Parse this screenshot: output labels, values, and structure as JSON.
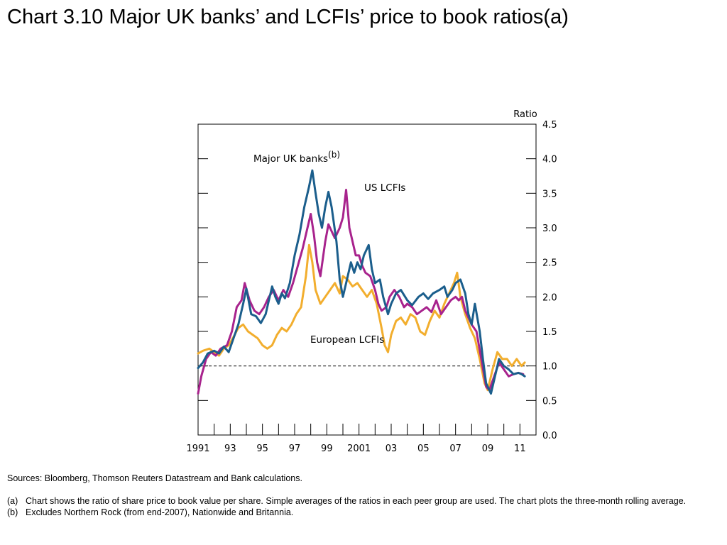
{
  "title": "Chart 3.10  Major UK banks’ and LCFIs’ price to book ratios(a)",
  "chart_data": {
    "type": "line",
    "ylabel": "Ratio",
    "ylim": [
      0,
      4.5
    ],
    "yticks": [
      "0.0",
      "0.5",
      "1.0",
      "1.5",
      "2.0",
      "2.5",
      "3.0",
      "3.5",
      "4.0",
      "4.5"
    ],
    "xlim": [
      1991,
      2012
    ],
    "xticks": [
      {
        "x": 1991,
        "label": "1991"
      },
      {
        "x": 1993,
        "label": "93"
      },
      {
        "x": 1995,
        "label": "95"
      },
      {
        "x": 1997,
        "label": "97"
      },
      {
        "x": 1999,
        "label": "99"
      },
      {
        "x": 2001,
        "label": "2001"
      },
      {
        "x": 2003,
        "label": "03"
      },
      {
        "x": 2005,
        "label": "05"
      },
      {
        "x": 2007,
        "label": "07"
      },
      {
        "x": 2009,
        "label": "09"
      },
      {
        "x": 2011,
        "label": "11"
      }
    ],
    "reference_line": {
      "y": 1.0,
      "style": "dashed"
    },
    "grid": false,
    "series": [
      {
        "name": "Major UK banks",
        "name_superscript": "(b)",
        "color": "#1b5e8c",
        "points": [
          [
            1991.0,
            0.97
          ],
          [
            1991.3,
            1.05
          ],
          [
            1991.6,
            1.18
          ],
          [
            1992.0,
            1.22
          ],
          [
            1992.3,
            1.18
          ],
          [
            1992.6,
            1.28
          ],
          [
            1992.9,
            1.2
          ],
          [
            1993.2,
            1.4
          ],
          [
            1993.5,
            1.6
          ],
          [
            1993.8,
            1.9
          ],
          [
            1994.0,
            2.12
          ],
          [
            1994.3,
            1.75
          ],
          [
            1994.6,
            1.72
          ],
          [
            1994.9,
            1.62
          ],
          [
            1995.2,
            1.75
          ],
          [
            1995.4,
            1.95
          ],
          [
            1995.6,
            2.15
          ],
          [
            1995.8,
            2.0
          ],
          [
            1996.0,
            1.9
          ],
          [
            1996.2,
            2.05
          ],
          [
            1996.4,
            1.98
          ],
          [
            1996.7,
            2.2
          ],
          [
            1997.0,
            2.6
          ],
          [
            1997.3,
            2.9
          ],
          [
            1997.6,
            3.3
          ],
          [
            1997.9,
            3.6
          ],
          [
            1998.1,
            3.83
          ],
          [
            1998.3,
            3.5
          ],
          [
            1998.5,
            3.2
          ],
          [
            1998.7,
            3.0
          ],
          [
            1998.9,
            3.3
          ],
          [
            1999.1,
            3.52
          ],
          [
            1999.3,
            3.3
          ],
          [
            1999.6,
            2.8
          ],
          [
            1999.8,
            2.25
          ],
          [
            2000.0,
            2.0
          ],
          [
            2000.3,
            2.3
          ],
          [
            2000.5,
            2.5
          ],
          [
            2000.7,
            2.35
          ],
          [
            2000.9,
            2.5
          ],
          [
            2001.1,
            2.4
          ],
          [
            2001.3,
            2.6
          ],
          [
            2001.6,
            2.75
          ],
          [
            2001.8,
            2.4
          ],
          [
            2002.0,
            2.2
          ],
          [
            2002.3,
            2.25
          ],
          [
            2002.5,
            2.0
          ],
          [
            2002.8,
            1.75
          ],
          [
            2003.0,
            1.9
          ],
          [
            2003.3,
            2.05
          ],
          [
            2003.6,
            2.1
          ],
          [
            2004.0,
            1.95
          ],
          [
            2004.3,
            1.88
          ],
          [
            2004.7,
            2.0
          ],
          [
            2005.0,
            2.05
          ],
          [
            2005.3,
            1.97
          ],
          [
            2005.6,
            2.05
          ],
          [
            2006.0,
            2.1
          ],
          [
            2006.3,
            2.15
          ],
          [
            2006.5,
            2.0
          ],
          [
            2006.8,
            2.1
          ],
          [
            2007.0,
            2.2
          ],
          [
            2007.3,
            2.25
          ],
          [
            2007.6,
            2.05
          ],
          [
            2007.8,
            1.75
          ],
          [
            2008.0,
            1.6
          ],
          [
            2008.2,
            1.9
          ],
          [
            2008.5,
            1.5
          ],
          [
            2008.7,
            1.1
          ],
          [
            2008.9,
            0.75
          ],
          [
            2009.2,
            0.6
          ],
          [
            2009.4,
            0.8
          ],
          [
            2009.7,
            1.1
          ],
          [
            2010.0,
            1.0
          ],
          [
            2010.3,
            0.95
          ],
          [
            2010.6,
            0.88
          ],
          [
            2010.9,
            0.9
          ],
          [
            2011.1,
            0.88
          ],
          [
            2011.3,
            0.85
          ]
        ]
      },
      {
        "name": "US LCFIs",
        "color": "#a8238d",
        "points": [
          [
            1991.0,
            0.6
          ],
          [
            1991.2,
            0.85
          ],
          [
            1991.5,
            1.1
          ],
          [
            1991.8,
            1.2
          ],
          [
            1992.1,
            1.15
          ],
          [
            1992.4,
            1.25
          ],
          [
            1992.8,
            1.3
          ],
          [
            1993.1,
            1.5
          ],
          [
            1993.4,
            1.85
          ],
          [
            1993.7,
            1.95
          ],
          [
            1993.9,
            2.2
          ],
          [
            1994.2,
            1.95
          ],
          [
            1994.5,
            1.8
          ],
          [
            1994.8,
            1.75
          ],
          [
            1995.1,
            1.85
          ],
          [
            1995.4,
            2.0
          ],
          [
            1995.7,
            2.1
          ],
          [
            1996.0,
            1.95
          ],
          [
            1996.3,
            2.1
          ],
          [
            1996.6,
            2.0
          ],
          [
            1996.9,
            2.2
          ],
          [
            1997.2,
            2.45
          ],
          [
            1997.5,
            2.7
          ],
          [
            1997.8,
            3.0
          ],
          [
            1998.0,
            3.2
          ],
          [
            1998.2,
            2.9
          ],
          [
            1998.4,
            2.5
          ],
          [
            1998.6,
            2.3
          ],
          [
            1998.9,
            2.8
          ],
          [
            1999.1,
            3.05
          ],
          [
            1999.3,
            2.95
          ],
          [
            1999.5,
            2.85
          ],
          [
            1999.8,
            3.0
          ],
          [
            2000.0,
            3.15
          ],
          [
            2000.2,
            3.55
          ],
          [
            2000.4,
            3.0
          ],
          [
            2000.6,
            2.8
          ],
          [
            2000.8,
            2.6
          ],
          [
            2001.0,
            2.6
          ],
          [
            2001.2,
            2.45
          ],
          [
            2001.4,
            2.35
          ],
          [
            2001.7,
            2.3
          ],
          [
            2002.0,
            2.1
          ],
          [
            2002.2,
            1.9
          ],
          [
            2002.4,
            1.8
          ],
          [
            2002.7,
            1.85
          ],
          [
            2002.9,
            2.0
          ],
          [
            2003.2,
            2.1
          ],
          [
            2003.5,
            2.0
          ],
          [
            2003.8,
            1.85
          ],
          [
            2004.0,
            1.9
          ],
          [
            2004.3,
            1.85
          ],
          [
            2004.6,
            1.75
          ],
          [
            2004.9,
            1.8
          ],
          [
            2005.2,
            1.85
          ],
          [
            2005.5,
            1.78
          ],
          [
            2005.8,
            1.95
          ],
          [
            2006.1,
            1.75
          ],
          [
            2006.4,
            1.85
          ],
          [
            2006.7,
            1.95
          ],
          [
            2007.0,
            2.0
          ],
          [
            2007.2,
            1.95
          ],
          [
            2007.4,
            2.0
          ],
          [
            2007.6,
            1.8
          ],
          [
            2007.8,
            1.7
          ],
          [
            2008.0,
            1.6
          ],
          [
            2008.3,
            1.5
          ],
          [
            2008.6,
            1.1
          ],
          [
            2008.9,
            0.7
          ],
          [
            2009.1,
            0.65
          ],
          [
            2009.4,
            0.85
          ],
          [
            2009.7,
            1.05
          ],
          [
            2010.0,
            0.95
          ],
          [
            2010.3,
            0.85
          ],
          [
            2010.6,
            0.88
          ],
          [
            2010.9,
            0.9
          ],
          [
            2011.2,
            0.88
          ]
        ]
      },
      {
        "name": "European LCFIs",
        "color": "#f2ae2e",
        "points": [
          [
            1991.0,
            1.18
          ],
          [
            1991.3,
            1.22
          ],
          [
            1991.7,
            1.25
          ],
          [
            1992.0,
            1.2
          ],
          [
            1992.3,
            1.15
          ],
          [
            1992.6,
            1.25
          ],
          [
            1992.9,
            1.3
          ],
          [
            1993.2,
            1.42
          ],
          [
            1993.5,
            1.55
          ],
          [
            1993.8,
            1.6
          ],
          [
            1994.1,
            1.5
          ],
          [
            1994.4,
            1.45
          ],
          [
            1994.7,
            1.4
          ],
          [
            1995.0,
            1.3
          ],
          [
            1995.3,
            1.25
          ],
          [
            1995.6,
            1.3
          ],
          [
            1995.9,
            1.45
          ],
          [
            1996.2,
            1.55
          ],
          [
            1996.5,
            1.5
          ],
          [
            1996.8,
            1.6
          ],
          [
            1997.1,
            1.75
          ],
          [
            1997.4,
            1.85
          ],
          [
            1997.7,
            2.3
          ],
          [
            1997.9,
            2.75
          ],
          [
            1998.1,
            2.5
          ],
          [
            1998.3,
            2.1
          ],
          [
            1998.6,
            1.9
          ],
          [
            1998.9,
            2.0
          ],
          [
            1999.2,
            2.1
          ],
          [
            1999.5,
            2.2
          ],
          [
            1999.8,
            2.05
          ],
          [
            2000.0,
            2.3
          ],
          [
            2000.3,
            2.25
          ],
          [
            2000.6,
            2.15
          ],
          [
            2000.9,
            2.2
          ],
          [
            2001.2,
            2.1
          ],
          [
            2001.5,
            2.0
          ],
          [
            2001.8,
            2.1
          ],
          [
            2002.1,
            1.9
          ],
          [
            2002.4,
            1.55
          ],
          [
            2002.6,
            1.3
          ],
          [
            2002.8,
            1.2
          ],
          [
            2003.0,
            1.45
          ],
          [
            2003.3,
            1.65
          ],
          [
            2003.6,
            1.7
          ],
          [
            2003.9,
            1.6
          ],
          [
            2004.2,
            1.75
          ],
          [
            2004.5,
            1.7
          ],
          [
            2004.8,
            1.5
          ],
          [
            2005.1,
            1.45
          ],
          [
            2005.4,
            1.65
          ],
          [
            2005.7,
            1.8
          ],
          [
            2006.0,
            1.7
          ],
          [
            2006.3,
            1.9
          ],
          [
            2006.6,
            2.05
          ],
          [
            2006.9,
            2.2
          ],
          [
            2007.1,
            2.35
          ],
          [
            2007.3,
            2.0
          ],
          [
            2007.6,
            1.75
          ],
          [
            2007.9,
            1.55
          ],
          [
            2008.2,
            1.4
          ],
          [
            2008.5,
            1.1
          ],
          [
            2008.8,
            0.75
          ],
          [
            2009.0,
            0.65
          ],
          [
            2009.3,
            0.95
          ],
          [
            2009.6,
            1.2
          ],
          [
            2009.9,
            1.1
          ],
          [
            2010.2,
            1.1
          ],
          [
            2010.5,
            1.0
          ],
          [
            2010.8,
            1.1
          ],
          [
            2011.1,
            1.0
          ],
          [
            2011.3,
            1.05
          ]
        ]
      }
    ]
  },
  "notes": {
    "sources": "Sources:  Bloomberg, Thomson Reuters Datastream and Bank calculations.",
    "a_marker": "(a)",
    "a_text": "Chart shows the ratio of share price to book value per share.  Simple averages of the ratios in each peer group are used.  The chart plots the three-month rolling average.",
    "b_marker": "(b)",
    "b_text": "Excludes Northern Rock (from end-2007), Nationwide and Britannia."
  }
}
